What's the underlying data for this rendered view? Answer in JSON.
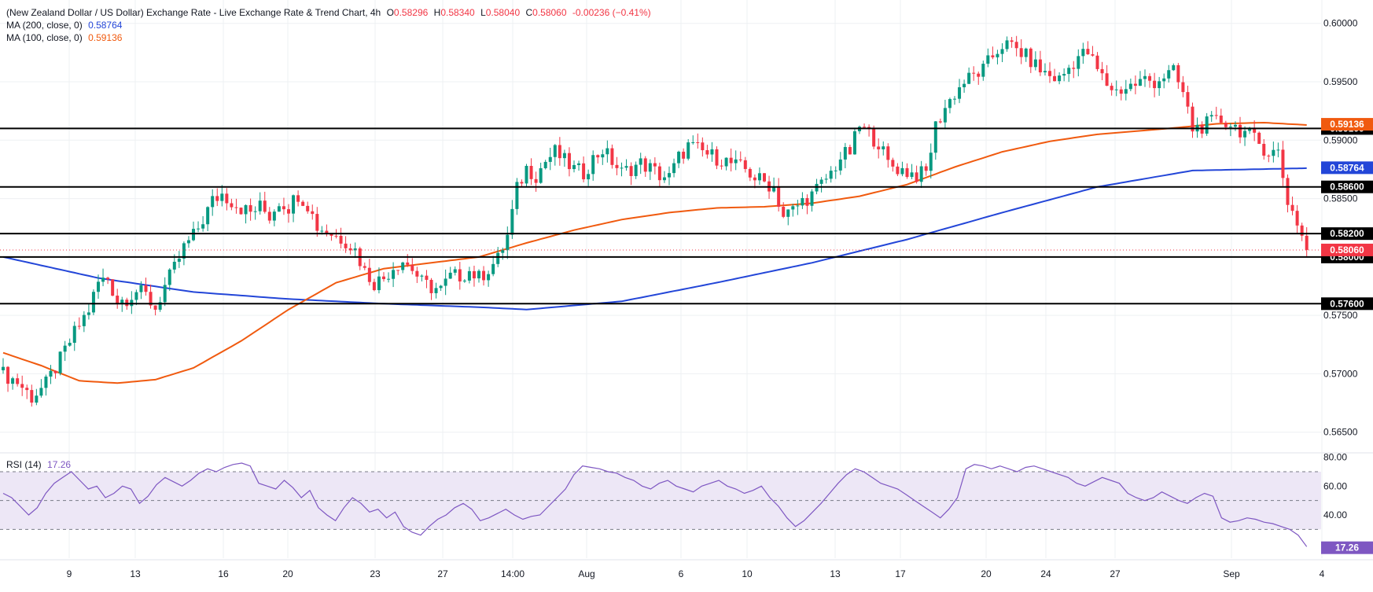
{
  "header": {
    "title": "(New Zealand Dollar / US Dollar) Exchange Rate - Live Exchange Rate & Trend Chart, 4h",
    "o_label": "O",
    "o_value": "0.58296",
    "h_label": "H",
    "h_value": "0.58340",
    "l_label": "L",
    "l_value": "0.58040",
    "c_label": "C",
    "c_value": "0.58060",
    "change": "-0.00236 (−0.41%)"
  },
  "indicators": {
    "ma200_label": "MA (200, close, 0)",
    "ma200_value": "0.58764",
    "ma100_label": "MA (100, close, 0)",
    "ma100_value": "0.59136",
    "rsi_label": "RSI (14)",
    "rsi_value": "17.26"
  },
  "colors": {
    "up": "#089981",
    "down": "#f23645",
    "ma200": "#2346d8",
    "ma100": "#f05a0f",
    "rsi": "#7e57c2",
    "rsi_band": "#ede7f6",
    "level": "#000000",
    "grid": "#eef0f3"
  },
  "chart_data": [
    {
      "type": "candlestick",
      "y_range": [
        0.5635,
        0.602
      ],
      "y_ticks": [
        "0.60000",
        "0.59500",
        "0.59000",
        "0.58500",
        "0.58000",
        "0.57500",
        "0.57000",
        "0.56500"
      ],
      "x_ticks": [
        "9",
        "13",
        "16",
        "20",
        "23",
        "27",
        "14:00",
        "Aug",
        "6",
        "10",
        "13",
        "17",
        "20",
        "24",
        "27",
        "Sep",
        "4"
      ],
      "levels": [
        "0.59100",
        "0.58600",
        "0.58200",
        "0.58000",
        "0.57600"
      ],
      "price_label": "0.58060",
      "ma200_label": "0.58764",
      "ma100_label": "0.59136",
      "close_anchors": [
        [
          0,
          0.57
        ],
        [
          3,
          0.5693
        ],
        [
          6,
          0.568
        ],
        [
          9,
          0.5691
        ],
        [
          12,
          0.5712
        ],
        [
          15,
          0.5735
        ],
        [
          18,
          0.5755
        ],
        [
          20,
          0.5778
        ],
        [
          22,
          0.5782
        ],
        [
          24,
          0.5762
        ],
        [
          26,
          0.5765
        ],
        [
          28,
          0.5771
        ],
        [
          30,
          0.5767
        ],
        [
          32,
          0.5756
        ],
        [
          34,
          0.5775
        ],
        [
          36,
          0.579
        ],
        [
          38,
          0.5808
        ],
        [
          40,
          0.5818
        ],
        [
          42,
          0.5832
        ],
        [
          44,
          0.5848
        ],
        [
          46,
          0.5854
        ],
        [
          48,
          0.5848
        ],
        [
          50,
          0.5842
        ],
        [
          52,
          0.5838
        ],
        [
          54,
          0.5843
        ],
        [
          56,
          0.5835
        ],
        [
          58,
          0.5848
        ],
        [
          60,
          0.5843
        ],
        [
          62,
          0.5854
        ],
        [
          64,
          0.5845
        ],
        [
          66,
          0.5826
        ],
        [
          68,
          0.5822
        ],
        [
          70,
          0.5818
        ],
        [
          72,
          0.5814
        ],
        [
          74,
          0.5806
        ],
        [
          76,
          0.5788
        ],
        [
          78,
          0.5778
        ],
        [
          80,
          0.5782
        ],
        [
          82,
          0.5792
        ],
        [
          84,
          0.5797
        ],
        [
          86,
          0.579
        ],
        [
          88,
          0.5778
        ],
        [
          90,
          0.5774
        ],
        [
          92,
          0.5772
        ],
        [
          94,
          0.5783
        ],
        [
          96,
          0.5784
        ],
        [
          98,
          0.5788
        ],
        [
          100,
          0.5782
        ],
        [
          102,
          0.579
        ],
        [
          104,
          0.5798
        ],
        [
          106,
          0.5818
        ],
        [
          108,
          0.5858
        ],
        [
          110,
          0.5876
        ],
        [
          112,
          0.587
        ],
        [
          114,
          0.5882
        ],
        [
          116,
          0.589
        ],
        [
          118,
          0.5882
        ],
        [
          120,
          0.5875
        ],
        [
          122,
          0.5872
        ],
        [
          124,
          0.5884
        ],
        [
          126,
          0.5892
        ],
        [
          128,
          0.5882
        ],
        [
          130,
          0.5872
        ],
        [
          132,
          0.5876
        ],
        [
          134,
          0.588
        ],
        [
          136,
          0.5876
        ],
        [
          138,
          0.587
        ],
        [
          140,
          0.5868
        ],
        [
          142,
          0.5885
        ],
        [
          144,
          0.5895
        ],
        [
          146,
          0.5892
        ],
        [
          148,
          0.5888
        ],
        [
          150,
          0.5885
        ],
        [
          152,
          0.5882
        ],
        [
          154,
          0.5878
        ],
        [
          156,
          0.5875
        ],
        [
          158,
          0.5868
        ],
        [
          160,
          0.5864
        ],
        [
          162,
          0.586
        ],
        [
          164,
          0.5835
        ],
        [
          166,
          0.584
        ],
        [
          168,
          0.5848
        ],
        [
          170,
          0.5853
        ],
        [
          172,
          0.5862
        ],
        [
          174,
          0.5872
        ],
        [
          176,
          0.5885
        ],
        [
          178,
          0.589
        ],
        [
          180,
          0.5912
        ],
        [
          182,
          0.5905
        ],
        [
          184,
          0.5898
        ],
        [
          186,
          0.588
        ],
        [
          188,
          0.5876
        ],
        [
          190,
          0.5873
        ],
        [
          192,
          0.587
        ],
        [
          194,
          0.5872
        ],
        [
          196,
          0.5912
        ],
        [
          198,
          0.5928
        ],
        [
          200,
          0.594
        ],
        [
          202,
          0.595
        ],
        [
          204,
          0.5955
        ],
        [
          206,
          0.596
        ],
        [
          208,
          0.5972
        ],
        [
          210,
          0.5982
        ],
        [
          212,
          0.598
        ],
        [
          214,
          0.5975
        ],
        [
          216,
          0.5968
        ],
        [
          218,
          0.596
        ],
        [
          220,
          0.5955
        ],
        [
          222,
          0.5952
        ],
        [
          224,
          0.5962
        ],
        [
          226,
          0.5972
        ],
        [
          228,
          0.5975
        ],
        [
          230,
          0.596
        ],
        [
          232,
          0.5948
        ],
        [
          234,
          0.5942
        ],
        [
          236,
          0.5945
        ],
        [
          238,
          0.5948
        ],
        [
          240,
          0.5952
        ],
        [
          242,
          0.595
        ],
        [
          244,
          0.5955
        ],
        [
          246,
          0.5958
        ],
        [
          248,
          0.594
        ],
        [
          250,
          0.591
        ],
        [
          252,
          0.5912
        ],
        [
          254,
          0.5915
        ],
        [
          256,
          0.5917
        ],
        [
          258,
          0.5914
        ],
        [
          260,
          0.5909
        ],
        [
          262,
          0.5904
        ],
        [
          264,
          0.5897
        ],
        [
          266,
          0.589
        ],
        [
          268,
          0.589
        ],
        [
          270,
          0.5848
        ],
        [
          272,
          0.583
        ],
        [
          274,
          0.5806
        ]
      ],
      "ma200_anchors": [
        [
          0,
          0.58
        ],
        [
          20,
          0.5782
        ],
        [
          40,
          0.577
        ],
        [
          60,
          0.5764
        ],
        [
          80,
          0.576
        ],
        [
          100,
          0.5757
        ],
        [
          110,
          0.5755
        ],
        [
          130,
          0.5762
        ],
        [
          150,
          0.5778
        ],
        [
          170,
          0.5795
        ],
        [
          190,
          0.5815
        ],
        [
          210,
          0.5838
        ],
        [
          230,
          0.586
        ],
        [
          250,
          0.5874
        ],
        [
          274,
          0.5876
        ]
      ],
      "ma100_anchors": [
        [
          0,
          0.5718
        ],
        [
          8,
          0.5707
        ],
        [
          16,
          0.5694
        ],
        [
          24,
          0.5692
        ],
        [
          32,
          0.5695
        ],
        [
          40,
          0.5705
        ],
        [
          50,
          0.5728
        ],
        [
          60,
          0.5755
        ],
        [
          70,
          0.5778
        ],
        [
          80,
          0.579
        ],
        [
          90,
          0.5795
        ],
        [
          100,
          0.58
        ],
        [
          110,
          0.5812
        ],
        [
          120,
          0.5823
        ],
        [
          130,
          0.5832
        ],
        [
          140,
          0.5838
        ],
        [
          150,
          0.5842
        ],
        [
          160,
          0.5843
        ],
        [
          170,
          0.5846
        ],
        [
          180,
          0.5852
        ],
        [
          190,
          0.5862
        ],
        [
          200,
          0.5877
        ],
        [
          210,
          0.589
        ],
        [
          220,
          0.5899
        ],
        [
          230,
          0.5905
        ],
        [
          245,
          0.591
        ],
        [
          255,
          0.5914
        ],
        [
          265,
          0.5915
        ],
        [
          274,
          0.5913
        ]
      ]
    },
    {
      "type": "line",
      "name": "RSI (14)",
      "y_range": [
        10,
        82
      ],
      "y_ticks": [
        "80.00",
        "60.00",
        "40.00"
      ],
      "bands": [
        70,
        50,
        30
      ],
      "last_label": "17.26",
      "values": [
        55,
        52,
        46,
        40,
        45,
        55,
        62,
        66,
        70,
        64,
        58,
        60,
        52,
        55,
        60,
        58,
        48,
        53,
        61,
        66,
        63,
        60,
        64,
        69,
        72,
        70,
        73,
        75,
        76,
        74,
        62,
        60,
        58,
        64,
        59,
        52,
        57,
        45,
        40,
        36,
        45,
        52,
        48,
        42,
        44,
        38,
        42,
        32,
        28,
        26,
        32,
        37,
        40,
        45,
        48,
        44,
        36,
        38,
        41,
        44,
        40,
        37,
        39,
        40,
        46,
        52,
        58,
        68,
        74,
        73,
        72,
        70,
        69,
        66,
        64,
        60,
        58,
        62,
        64,
        60,
        58,
        56,
        60,
        62,
        64,
        60,
        58,
        55,
        57,
        60,
        52,
        46,
        38,
        32,
        36,
        42,
        48,
        55,
        62,
        68,
        72,
        70,
        66,
        62,
        60,
        58,
        54,
        50,
        46,
        42,
        38,
        44,
        52,
        72,
        75,
        74,
        72,
        74,
        72,
        70,
        73,
        74,
        72,
        70,
        68,
        66,
        62,
        60,
        63,
        66,
        64,
        62,
        55,
        52,
        50,
        52,
        56,
        53,
        50,
        48,
        52,
        55,
        53,
        38,
        35,
        36,
        38,
        37,
        35,
        34,
        32,
        30,
        26,
        18
      ]
    }
  ]
}
